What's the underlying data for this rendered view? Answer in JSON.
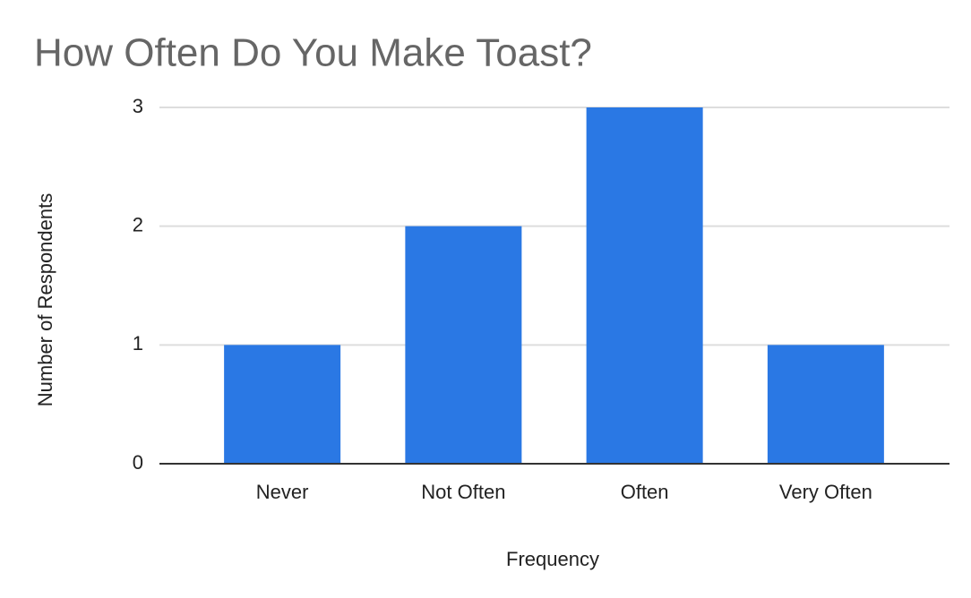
{
  "chart_data": {
    "type": "bar",
    "title": "How Often Do You Make Toast?",
    "x_label": "Frequency",
    "y_label": "Number of Respondents",
    "categories": [
      "Never",
      "Not Often",
      "Often",
      "Very Often"
    ],
    "values": [
      1,
      2,
      3,
      1
    ],
    "color": "#2a78e4",
    "ylim": [
      0,
      3
    ],
    "yticks": [
      0,
      1,
      2,
      3
    ],
    "grid": true
  }
}
